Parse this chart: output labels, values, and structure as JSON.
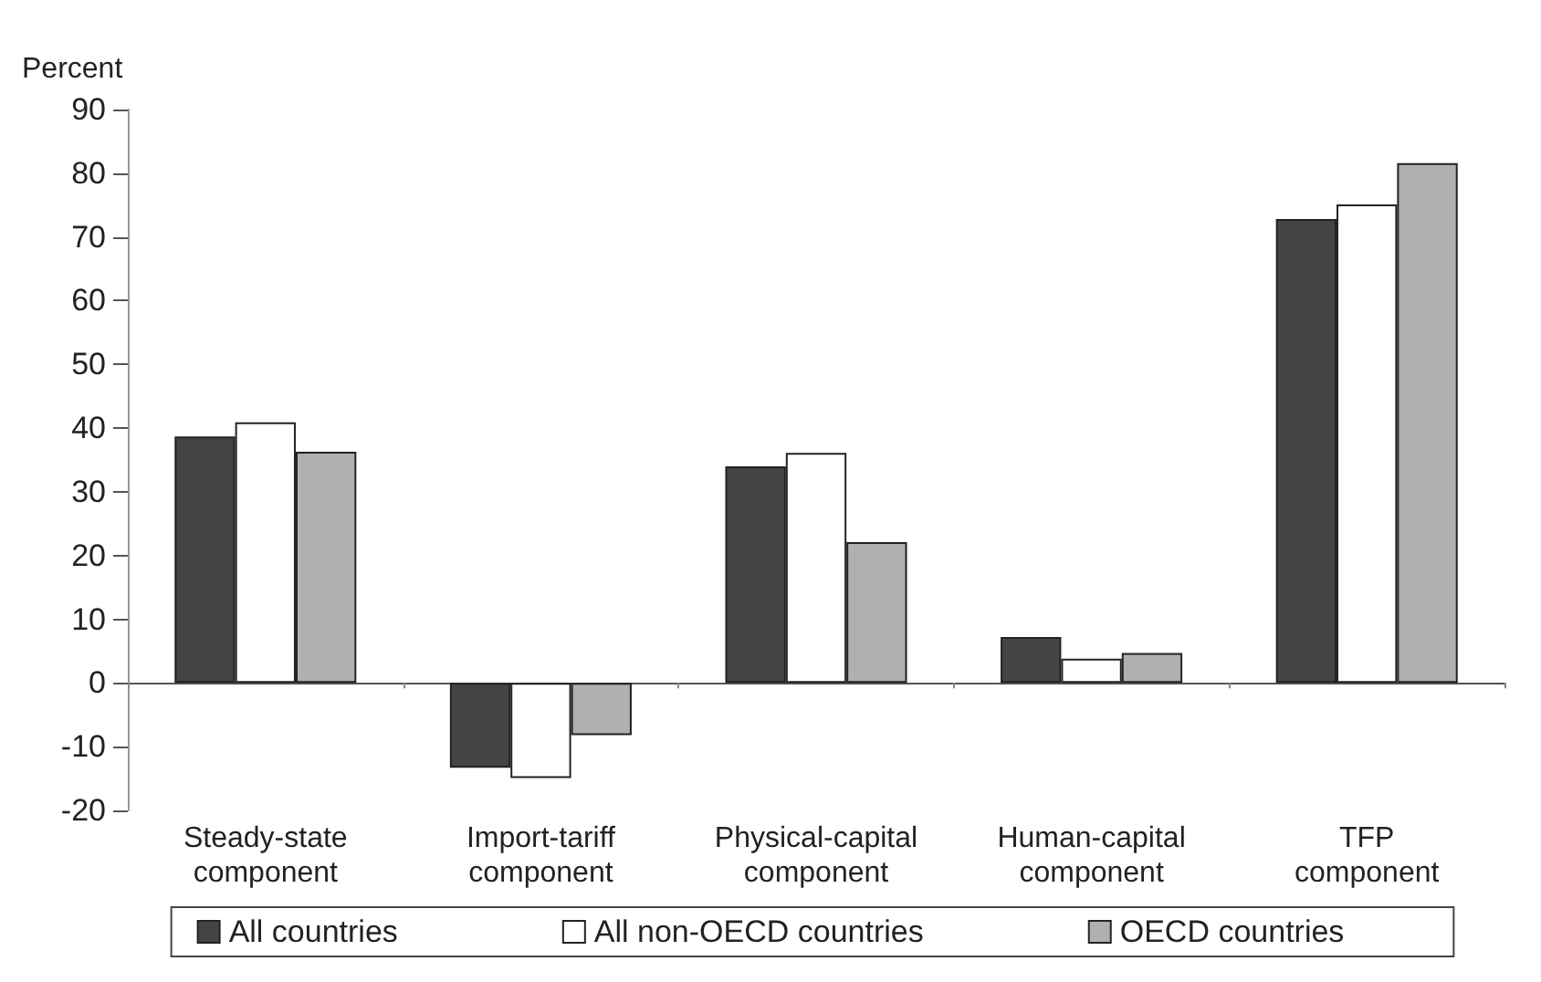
{
  "chart_data": {
    "type": "bar",
    "ylabel": "Percent",
    "categories": [
      "Steady-state\ncomponent",
      "Import-tariff\ncomponent",
      "Physical-capital\ncomponent",
      "Human-capital\ncomponent",
      "TFP\ncomponent"
    ],
    "series": [
      {
        "name": "All countries",
        "color": "#444444",
        "values": [
          38.7,
          -13.3,
          34,
          7.2,
          72.8
        ]
      },
      {
        "name": "All non-OECD countries",
        "color": "#ffffff",
        "values": [
          40.9,
          -14.9,
          36.1,
          3.8,
          75.1
        ]
      },
      {
        "name": "OECD countries",
        "color": "#b0b0b0",
        "values": [
          36.3,
          -8.2,
          22.1,
          4.7,
          81.6
        ]
      }
    ],
    "ylim": [
      -20,
      90
    ],
    "yticks": [
      -20,
      -10,
      0,
      10,
      20,
      30,
      40,
      50,
      60,
      70,
      80,
      90
    ],
    "legend": "bottom"
  }
}
